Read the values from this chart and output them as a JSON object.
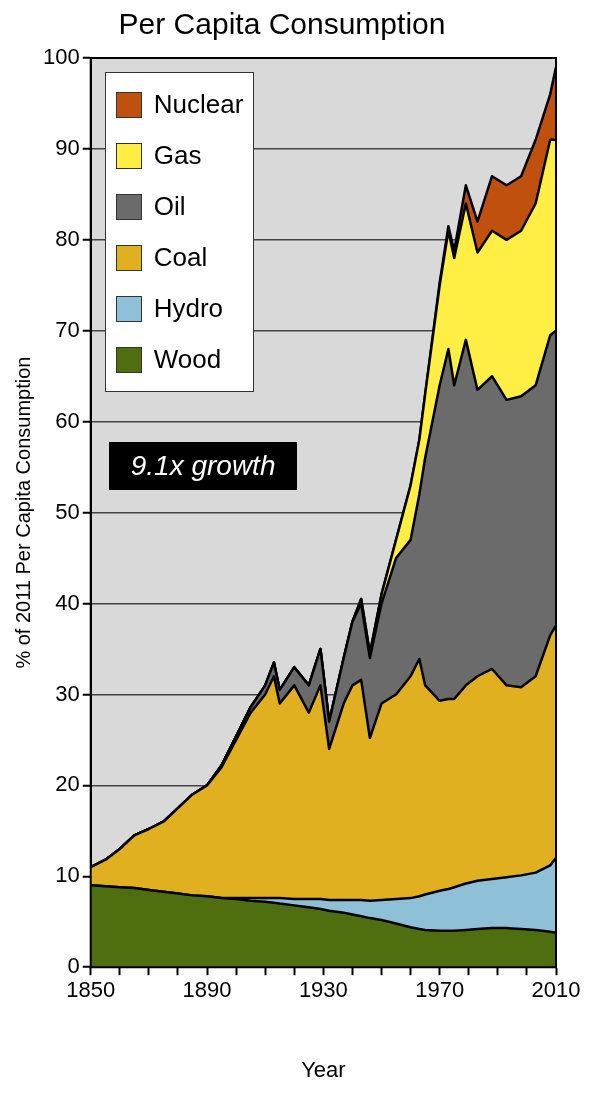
{
  "chart_data": {
    "type": "area",
    "stacked": true,
    "title": "Per Capita Consumption",
    "xlabel": "Year",
    "ylabel": "% of 2011 Per Capita Consumption",
    "x": [
      1850,
      1855,
      1860,
      1865,
      1870,
      1875,
      1880,
      1885,
      1890,
      1895,
      1900,
      1905,
      1910,
      1913,
      1915,
      1920,
      1925,
      1929,
      1932,
      1937,
      1940,
      1943,
      1946,
      1950,
      1955,
      1960,
      1963,
      1965,
      1970,
      1973,
      1975,
      1979,
      1983,
      1988,
      1993,
      1998,
      2003,
      2008,
      2010
    ],
    "series": [
      {
        "name": "Wood",
        "color": "#4f6e10",
        "values": [
          9,
          8.9,
          8.8,
          8.7,
          8.5,
          8.3,
          8.1,
          7.9,
          7.8,
          7.6,
          7.5,
          7.3,
          7.2,
          7.1,
          7.0,
          6.8,
          6.6,
          6.4,
          6.2,
          6.0,
          5.8,
          5.6,
          5.4,
          5.2,
          4.8,
          4.4,
          4.2,
          4.1,
          4.0,
          4.0,
          4.0,
          4.1,
          4.2,
          4.3,
          4.3,
          4.2,
          4.1,
          3.9,
          3.8
        ]
      },
      {
        "name": "Hydro",
        "color": "#8ec0d8",
        "values": [
          0,
          0,
          0,
          0,
          0,
          0,
          0,
          0,
          0,
          0,
          0.1,
          0.3,
          0.4,
          0.5,
          0.6,
          0.7,
          0.9,
          1.1,
          1.2,
          1.4,
          1.6,
          1.8,
          1.9,
          2.2,
          2.7,
          3.2,
          3.6,
          3.9,
          4.4,
          4.6,
          4.8,
          5.1,
          5.3,
          5.4,
          5.6,
          5.9,
          6.3,
          7.3,
          8.2
        ]
      },
      {
        "name": "Coal",
        "color": "#e0b020",
        "values": [
          2,
          2.9,
          4.2,
          5.8,
          6.7,
          7.7,
          9.4,
          11.1,
          12.2,
          14.4,
          17.4,
          20.4,
          22.4,
          24.4,
          21.4,
          23.5,
          20.5,
          23.5,
          16.6,
          21.6,
          23.6,
          24.2,
          17.9,
          21.6,
          22.5,
          24.4,
          26.1,
          23,
          20.9,
          20.9,
          20.7,
          21.8,
          22.5,
          23.1,
          21.1,
          20.7,
          21.6,
          25.3,
          25.6
        ]
      },
      {
        "name": "Oil",
        "color": "#6b6b6b",
        "values": [
          0,
          0,
          0,
          0,
          0,
          0,
          0,
          0,
          0,
          0.2,
          0.4,
          0.6,
          1,
          1.5,
          1.5,
          2,
          3,
          4,
          3,
          5,
          7,
          8.4,
          8.8,
          11,
          15,
          15,
          18.1,
          25,
          34.7,
          38.5,
          34.5,
          38,
          31.5,
          32.2,
          31.4,
          32,
          32,
          33,
          32.4
        ]
      },
      {
        "name": "Gas",
        "color": "#ffee44",
        "values": [
          0,
          0,
          0,
          0,
          0,
          0,
          0,
          0,
          0,
          0,
          0,
          0,
          0,
          0,
          0,
          0,
          0,
          0,
          0,
          0,
          0,
          0.5,
          0.5,
          1,
          2,
          6,
          6,
          7,
          11,
          13,
          14,
          15,
          15.1,
          16,
          17.6,
          18.2,
          20,
          21.5,
          21
        ]
      },
      {
        "name": "Nuclear",
        "color": "#c0500e",
        "values": [
          0,
          0,
          0,
          0,
          0,
          0,
          0,
          0,
          0,
          0,
          0,
          0,
          0,
          0,
          0,
          0,
          0,
          0,
          0,
          0,
          0,
          0,
          0,
          0,
          0,
          0,
          0,
          0,
          0.3,
          0.5,
          0.8,
          2,
          3.4,
          6,
          6,
          6,
          7,
          5,
          8
        ]
      }
    ],
    "xlim": [
      1850,
      2010
    ],
    "xticks": [
      1850,
      {
        "value": 1860,
        "label": null
      },
      {
        "value": 1870,
        "label": null
      },
      {
        "value": 1880,
        "label": null
      },
      1890,
      {
        "value": 1900,
        "label": null
      },
      {
        "value": 1910,
        "label": null
      },
      {
        "value": 1920,
        "label": null
      },
      1930,
      {
        "value": 1940,
        "label": null
      },
      {
        "value": 1950,
        "label": null
      },
      {
        "value": 1960,
        "label": null
      },
      1970,
      {
        "value": 1980,
        "label": null
      },
      {
        "value": 1990,
        "label": null
      },
      {
        "value": 2000,
        "label": null
      },
      2010
    ],
    "ylim": [
      0,
      100
    ],
    "yticks": [
      0,
      10,
      20,
      30,
      40,
      50,
      60,
      70,
      80,
      90,
      100
    ],
    "grid": "y",
    "legend": "top left",
    "annotations": [
      "9.1x growth"
    ]
  }
}
